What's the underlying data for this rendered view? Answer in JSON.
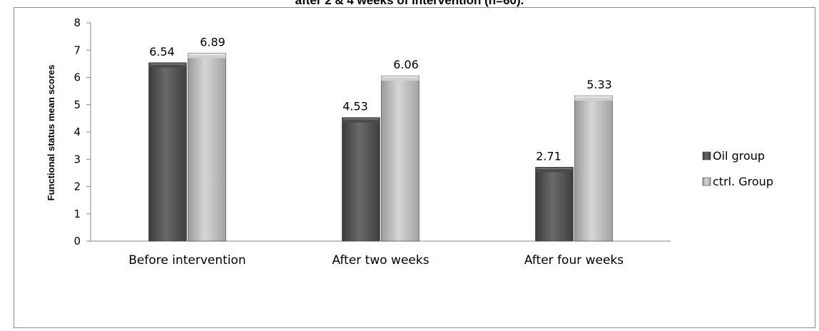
{
  "title": "after 2 & 4 weeks of intervention (n=60).",
  "colors": {
    "oil": "#595959",
    "ctrl": "#bfbfbf",
    "axis": "#868686"
  },
  "chart_data": {
    "type": "bar",
    "title": "after 2 & 4 weeks of intervention (n=60).",
    "xlabel": "",
    "ylabel": "Functional status mean scores",
    "ylim": [
      0,
      8
    ],
    "yticks": [
      0,
      1,
      2,
      3,
      4,
      5,
      6,
      7,
      8
    ],
    "grid": false,
    "legend_position": "right",
    "categories": [
      "Before intervention",
      "After two weeks",
      "After four weeks"
    ],
    "series": [
      {
        "name": "Oil group",
        "values": [
          6.54,
          4.53,
          2.71
        ],
        "labels": [
          "6.54",
          "4.53",
          "2.71"
        ]
      },
      {
        "name": "ctrl. Group",
        "values": [
          6.89,
          6.06,
          5.33
        ],
        "labels": [
          "6.89",
          "6.06",
          "5.33"
        ]
      }
    ]
  }
}
